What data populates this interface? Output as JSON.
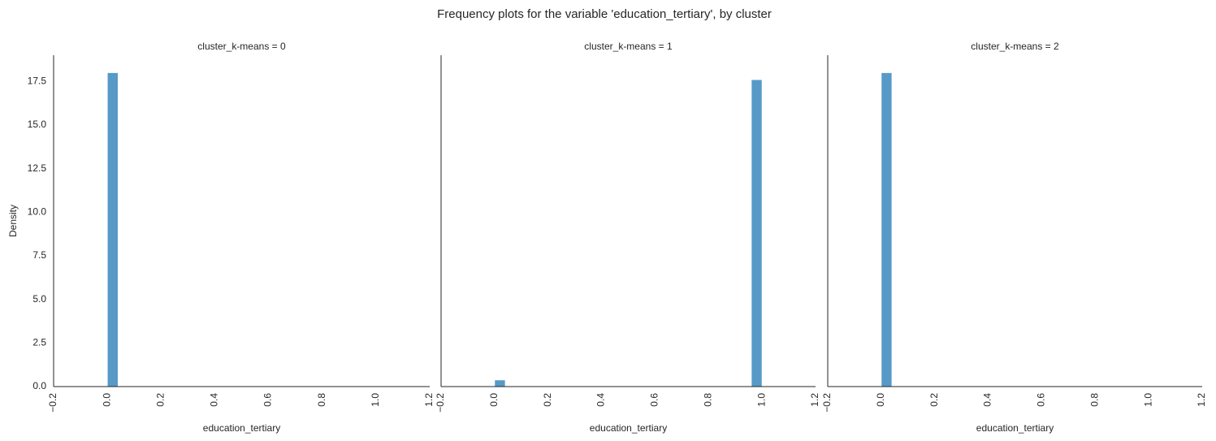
{
  "suptitle": "Frequency plots for the variable 'education_tertiary', by cluster",
  "colors": {
    "bar": "#5799c7",
    "bar_edge": "#ffffff",
    "axis": "#262626",
    "text": "#262626"
  },
  "chart_data": [
    {
      "type": "bar",
      "title": "cluster_k-means = 0",
      "xlabel": "education_tertiary",
      "ylabel": "Density",
      "xlim": [
        -0.2,
        1.2
      ],
      "ylim": [
        0,
        19
      ],
      "xticks": [
        "−0.2",
        "0.0",
        "0.2",
        "0.4",
        "0.6",
        "0.8",
        "1.0",
        "1.2"
      ],
      "xtick_values": [
        -0.2,
        0.0,
        0.2,
        0.4,
        0.6,
        0.8,
        1.0,
        1.2
      ],
      "yticks": [
        "0.0",
        "2.5",
        "5.0",
        "7.5",
        "10.0",
        "12.5",
        "15.0",
        "17.5"
      ],
      "ytick_values": [
        0,
        2.5,
        5,
        7.5,
        10,
        12.5,
        15,
        17.5
      ],
      "bars": [
        {
          "x0": 0.0,
          "x1": 0.04,
          "value": 18.0
        }
      ],
      "grid": false
    },
    {
      "type": "bar",
      "title": "cluster_k-means = 1",
      "xlabel": "education_tertiary",
      "ylabel": "",
      "xlim": [
        -0.2,
        1.2
      ],
      "ylim": [
        0,
        19
      ],
      "xticks": [
        "−0.2",
        "0.0",
        "0.2",
        "0.4",
        "0.6",
        "0.8",
        "1.0",
        "1.2"
      ],
      "xtick_values": [
        -0.2,
        0.0,
        0.2,
        0.4,
        0.6,
        0.8,
        1.0,
        1.2
      ],
      "yticks": [],
      "ytick_values": [],
      "bars": [
        {
          "x0": 0.0,
          "x1": 0.04,
          "value": 0.38
        },
        {
          "x0": 0.96,
          "x1": 1.0,
          "value": 17.6
        }
      ],
      "grid": false
    },
    {
      "type": "bar",
      "title": "cluster_k-means = 2",
      "xlabel": "education_tertiary",
      "ylabel": "",
      "xlim": [
        -0.2,
        1.2
      ],
      "ylim": [
        0,
        19
      ],
      "xticks": [
        "−0.2",
        "0.0",
        "0.2",
        "0.4",
        "0.6",
        "0.8",
        "1.0",
        "1.2"
      ],
      "xtick_values": [
        -0.2,
        0.0,
        0.2,
        0.4,
        0.6,
        0.8,
        1.0,
        1.2
      ],
      "yticks": [],
      "ytick_values": [],
      "bars": [
        {
          "x0": 0.0,
          "x1": 0.04,
          "value": 18.0
        }
      ],
      "grid": false
    }
  ]
}
